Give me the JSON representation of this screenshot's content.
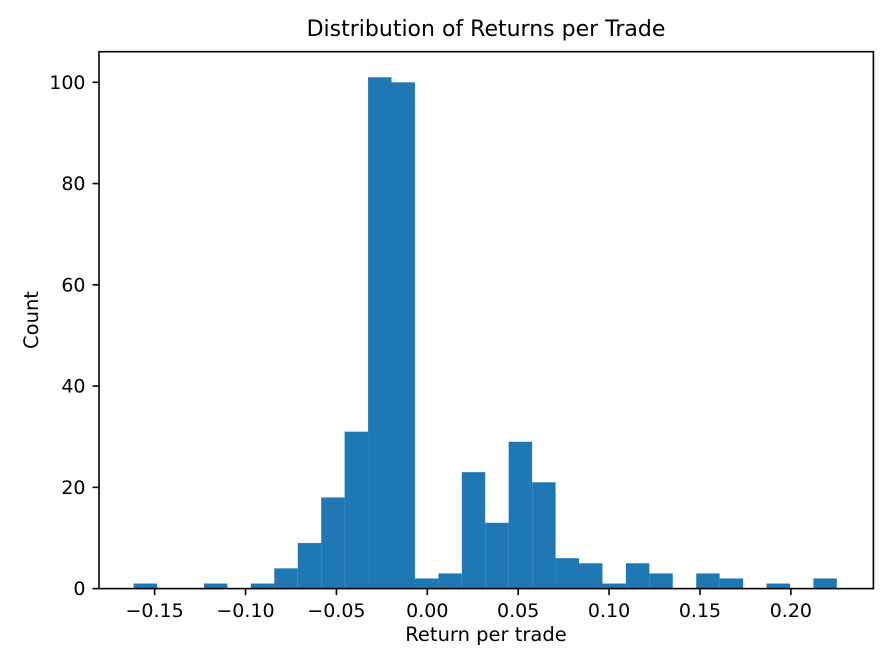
{
  "chart_data": {
    "type": "bar",
    "subtype": "histogram",
    "title": "Distribution of Returns per Trade",
    "xlabel": "Return per trade",
    "ylabel": "Count",
    "bar_color": "#1f77b4",
    "background_color": "#ffffff",
    "axis_color": "#000000",
    "grid": false,
    "n_bins": 30,
    "bin_start": -0.16153,
    "bin_width": 0.012894,
    "counts": [
      1,
      0,
      0,
      1,
      0,
      1,
      4,
      9,
      18,
      31,
      101,
      100,
      2,
      3,
      23,
      13,
      29,
      21,
      6,
      5,
      1,
      5,
      3,
      0,
      3,
      2,
      0,
      1,
      0,
      2
    ],
    "xlim": [
      -0.1806,
      0.2454
    ],
    "ylim": [
      0,
      106.05
    ],
    "xticks": {
      "values": [
        -0.15,
        -0.1,
        -0.05,
        0.0,
        0.05,
        0.1,
        0.15,
        0.2
      ],
      "labels": [
        "−0.15",
        "−0.10",
        "−0.05",
        "0.00",
        "0.05",
        "0.10",
        "0.15",
        "0.20"
      ]
    },
    "yticks": {
      "values": [
        0,
        20,
        40,
        60,
        80,
        100
      ],
      "labels": [
        "0",
        "20",
        "40",
        "60",
        "80",
        "100"
      ]
    }
  }
}
